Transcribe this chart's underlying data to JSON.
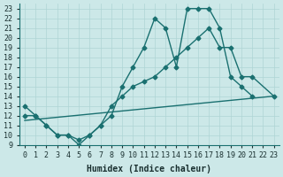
{
  "xlabel": "Humidex (Indice chaleur)",
  "background_color": "#cce8e8",
  "line_color": "#1a7070",
  "xlim": [
    -0.5,
    23.5
  ],
  "ylim": [
    9,
    23.5
  ],
  "xticks": [
    0,
    1,
    2,
    3,
    4,
    5,
    6,
    7,
    8,
    9,
    10,
    11,
    12,
    13,
    14,
    15,
    16,
    17,
    18,
    19,
    20,
    21,
    22,
    23
  ],
  "yticks": [
    9,
    10,
    11,
    12,
    13,
    14,
    15,
    16,
    17,
    18,
    19,
    20,
    21,
    22,
    23
  ],
  "line1_x": [
    0,
    1,
    2,
    3,
    4,
    5,
    6,
    7,
    8,
    9,
    10,
    11,
    12,
    13,
    14,
    15,
    16,
    17,
    18,
    19,
    20,
    21
  ],
  "line1_y": [
    12,
    12,
    11,
    10,
    10,
    9,
    10,
    11,
    12,
    15,
    17,
    19,
    22,
    21,
    17,
    23,
    23,
    23,
    21,
    16,
    15,
    14
  ],
  "line2_x": [
    0,
    1,
    2,
    3,
    4,
    5,
    6,
    7,
    8,
    9,
    10,
    11,
    12,
    13,
    14,
    15,
    16,
    17,
    18,
    19,
    20,
    21,
    23
  ],
  "line2_y": [
    13,
    12,
    11,
    10,
    10,
    9.5,
    10,
    11,
    13,
    14,
    15,
    15.5,
    16,
    17,
    18,
    19,
    20,
    21,
    19,
    19,
    16,
    16,
    14
  ],
  "line3_x": [
    0,
    23
  ],
  "line3_y": [
    11.5,
    14
  ],
  "grid_color": "#afd4d4",
  "marker": "D",
  "markersize": 2.5,
  "linewidth": 1.0,
  "fontsize_label": 7,
  "fontsize_tick": 6
}
